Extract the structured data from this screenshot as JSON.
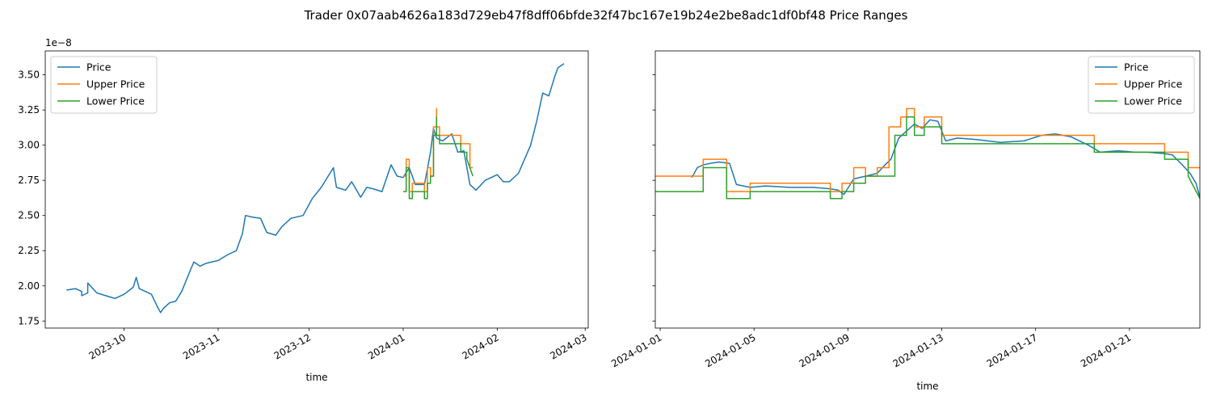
{
  "title": "Trader 0x07aab4626a183d729eb47f8dff06bfde32f47bc167e19b24e2be8adc1df0bf48 Price Ranges",
  "colors": {
    "price": "#1f77b4",
    "upper": "#ff7f0e",
    "lower": "#2ca02c"
  },
  "chart_data": [
    {
      "type": "line",
      "xlabel": "time",
      "y_offset_label": "1e−8",
      "y_unit": "1e-8",
      "xlim": [
        "2023-09-05",
        "2024-03-02"
      ],
      "ylim": [
        1.7,
        3.67
      ],
      "x_ticks": [
        "2023-10-01",
        "2023-11-01",
        "2023-12-01",
        "2024-01-01",
        "2024-02-01",
        "2024-03-01"
      ],
      "x_tick_labels": [
        "2023-10",
        "2023-11",
        "2023-12",
        "2024-01",
        "2024-02",
        "2024-03"
      ],
      "y_ticks": [
        1.75,
        2.0,
        2.25,
        2.5,
        2.75,
        3.0,
        3.25,
        3.5
      ],
      "y_tick_labels": [
        "1.75",
        "2.00",
        "2.25",
        "2.50",
        "2.75",
        "3.00",
        "3.25",
        "3.50"
      ],
      "legend": {
        "position": "top-left",
        "entries": [
          "Price",
          "Upper Price",
          "Lower Price"
        ]
      },
      "series": [
        {
          "name": "Price",
          "color": "#1f77b4",
          "x": [
            "2023-09-12",
            "2023-09-15",
            "2023-09-17",
            "2023-09-17",
            "2023-09-19",
            "2023-09-19",
            "2023-09-22",
            "2023-09-25",
            "2023-09-28",
            "2023-10-01",
            "2023-10-04",
            "2023-10-05",
            "2023-10-06",
            "2023-10-08",
            "2023-10-10",
            "2023-10-12",
            "2023-10-13",
            "2023-10-14",
            "2023-10-16",
            "2023-10-18",
            "2023-10-20",
            "2023-10-23",
            "2023-10-24",
            "2023-10-26",
            "2023-10-28",
            "2023-11-01",
            "2023-11-04",
            "2023-11-07",
            "2023-11-09",
            "2023-11-10",
            "2023-11-12",
            "2023-11-15",
            "2023-11-17",
            "2023-11-20",
            "2023-11-22",
            "2023-11-25",
            "2023-11-29",
            "2023-12-02",
            "2023-12-05",
            "2023-12-09",
            "2023-12-10",
            "2023-12-13",
            "2023-12-15",
            "2023-12-18",
            "2023-12-20",
            "2023-12-22",
            "2023-12-25",
            "2023-12-28",
            "2023-12-30",
            "2024-01-01",
            "2024-01-03",
            "2024-01-05",
            "2024-01-08",
            "2024-01-10",
            "2024-01-11",
            "2024-01-12",
            "2024-01-14",
            "2024-01-17",
            "2024-01-19",
            "2024-01-21",
            "2024-01-23",
            "2024-01-25",
            "2024-01-28",
            "2024-02-01",
            "2024-02-03",
            "2024-02-05",
            "2024-02-08",
            "2024-02-10",
            "2024-02-12",
            "2024-02-14",
            "2024-02-16",
            "2024-02-18",
            "2024-02-20",
            "2024-02-21",
            "2024-02-23"
          ],
          "y": [
            1.97,
            1.98,
            1.96,
            1.93,
            1.95,
            2.02,
            1.95,
            1.93,
            1.91,
            1.94,
            1.99,
            2.06,
            1.98,
            1.96,
            1.94,
            1.85,
            1.81,
            1.84,
            1.88,
            1.89,
            1.96,
            2.12,
            2.17,
            2.14,
            2.16,
            2.18,
            2.22,
            2.25,
            2.37,
            2.5,
            2.49,
            2.48,
            2.38,
            2.36,
            2.42,
            2.48,
            2.5,
            2.62,
            2.7,
            2.84,
            2.7,
            2.68,
            2.74,
            2.63,
            2.7,
            2.69,
            2.67,
            2.86,
            2.78,
            2.77,
            2.84,
            2.72,
            2.72,
            2.95,
            3.12,
            3.05,
            3.03,
            3.08,
            2.95,
            2.96,
            2.72,
            2.68,
            2.75,
            2.79,
            2.74,
            2.74,
            2.8,
            2.9,
            3.0,
            3.17,
            3.37,
            3.35,
            3.49,
            3.55,
            3.58
          ]
        },
        {
          "name": "Upper Price",
          "color": "#ff7f0e",
          "x": [
            "2024-01-01",
            "2024-01-02",
            "2024-01-02",
            "2024-01-03",
            "2024-01-03",
            "2024-01-04",
            "2024-01-04",
            "2024-01-08",
            "2024-01-08",
            "2024-01-09",
            "2024-01-09",
            "2024-01-10",
            "2024-01-10",
            "2024-01-11",
            "2024-01-11",
            "2024-01-12",
            "2024-01-12",
            "2024-01-12",
            "2024-01-12",
            "2024-01-13",
            "2024-01-13",
            "2024-01-20",
            "2024-01-20",
            "2024-01-23",
            "2024-01-23",
            "2024-01-24"
          ],
          "y": [
            2.78,
            2.78,
            2.9,
            2.9,
            2.67,
            2.67,
            2.73,
            2.73,
            2.67,
            2.67,
            2.84,
            2.84,
            2.78,
            2.78,
            3.13,
            3.13,
            3.26,
            3.26,
            3.13,
            3.13,
            3.07,
            3.07,
            3.01,
            3.01,
            2.84,
            2.84
          ]
        },
        {
          "name": "Lower Price",
          "color": "#2ca02c",
          "x": [
            "2024-01-01",
            "2024-01-02",
            "2024-01-02",
            "2024-01-03",
            "2024-01-03",
            "2024-01-04",
            "2024-01-04",
            "2024-01-08",
            "2024-01-08",
            "2024-01-09",
            "2024-01-09",
            "2024-01-10",
            "2024-01-10",
            "2024-01-11",
            "2024-01-11",
            "2024-01-12",
            "2024-01-12",
            "2024-01-12",
            "2024-01-12",
            "2024-01-13",
            "2024-01-13",
            "2024-01-20",
            "2024-01-20",
            "2024-01-22",
            "2024-01-22",
            "2024-01-24"
          ],
          "y": [
            2.67,
            2.67,
            2.84,
            2.84,
            2.62,
            2.62,
            2.67,
            2.67,
            2.62,
            2.62,
            2.73,
            2.73,
            2.78,
            2.78,
            3.07,
            3.07,
            3.2,
            3.2,
            3.07,
            3.07,
            3.01,
            3.01,
            2.95,
            2.95,
            2.9,
            2.78
          ]
        }
      ]
    },
    {
      "type": "line",
      "xlabel": "time",
      "y_unit": "1e-8",
      "xlim": [
        "2023-12-31T19:00",
        "2024-01-24T00:00"
      ],
      "ylim": [
        1.7,
        3.67
      ],
      "x_ticks": [
        "2024-01-01",
        "2024-01-05",
        "2024-01-09",
        "2024-01-13",
        "2024-01-17",
        "2024-01-21"
      ],
      "x_tick_labels": [
        "2024-01-01",
        "2024-01-05",
        "2024-01-09",
        "2024-01-13",
        "2024-01-17",
        "2024-01-21"
      ],
      "y_ticks": [
        1.75,
        2.0,
        2.25,
        2.5,
        2.75,
        3.0,
        3.25,
        3.5
      ],
      "legend": {
        "position": "top-right",
        "entries": [
          "Price",
          "Upper Price",
          "Lower Price"
        ]
      },
      "series": [
        {
          "name": "Price",
          "color": "#1f77b4",
          "x": [
            "2024-01-02T08:00",
            "2024-01-02T10:00",
            "2024-01-02T14:00",
            "2024-01-02T20:00",
            "2024-01-03T03:00",
            "2024-01-03T12:00",
            "2024-01-03T23:00",
            "2024-01-04T06:00",
            "2024-01-04T20:00",
            "2024-01-05T12:00",
            "2024-01-06T12:00",
            "2024-01-07T12:00",
            "2024-01-08T06:00",
            "2024-01-08T14:00",
            "2024-01-08T20:00",
            "2024-01-09T06:00",
            "2024-01-09T18:00",
            "2024-01-10T06:00",
            "2024-01-10T14:00",
            "2024-01-10T20:00",
            "2024-01-11T04:00",
            "2024-01-11T12:00",
            "2024-01-11T20:00",
            "2024-01-12T04:00",
            "2024-01-12T12:00",
            "2024-01-12T20:00",
            "2024-01-13T04:00",
            "2024-01-13T16:00",
            "2024-01-14T12:00",
            "2024-01-15T12:00",
            "2024-01-16T12:00",
            "2024-01-17T06:00",
            "2024-01-17T20:00",
            "2024-01-18T12:00",
            "2024-01-19T06:00",
            "2024-01-19T18:00",
            "2024-01-20T12:00",
            "2024-01-21T06:00",
            "2024-01-21T18:00",
            "2024-01-22T12:00",
            "2024-01-22T20:00",
            "2024-01-23T06:00",
            "2024-01-23T14:00",
            "2024-01-23T20:00",
            "2024-01-24T00:00"
          ],
          "y": [
            2.77,
            2.79,
            2.84,
            2.86,
            2.87,
            2.88,
            2.87,
            2.72,
            2.7,
            2.71,
            2.7,
            2.7,
            2.69,
            2.68,
            2.65,
            2.76,
            2.78,
            2.8,
            2.86,
            2.9,
            3.05,
            3.1,
            3.15,
            3.12,
            3.18,
            3.17,
            3.03,
            3.05,
            3.04,
            3.02,
            3.03,
            3.07,
            3.08,
            3.06,
            3.0,
            2.95,
            2.96,
            2.95,
            2.95,
            2.94,
            2.93,
            2.86,
            2.8,
            2.73,
            2.63
          ]
        },
        {
          "name": "Upper Price",
          "color": "#ff7f0e",
          "x": [
            "2023-12-31T19:00",
            "2024-01-02T20:00",
            "2024-01-02T20:00",
            "2024-01-03T20:00",
            "2024-01-03T20:00",
            "2024-01-04T20:00",
            "2024-01-04T20:00",
            "2024-01-08T06:00",
            "2024-01-08T06:00",
            "2024-01-08T18:00",
            "2024-01-08T18:00",
            "2024-01-09T06:00",
            "2024-01-09T06:00",
            "2024-01-09T18:00",
            "2024-01-09T18:00",
            "2024-01-10T06:00",
            "2024-01-10T06:00",
            "2024-01-10T18:00",
            "2024-01-10T18:00",
            "2024-01-11T06:00",
            "2024-01-11T06:00",
            "2024-01-11T12:00",
            "2024-01-11T12:00",
            "2024-01-11T20:00",
            "2024-01-11T20:00",
            "2024-01-12T06:00",
            "2024-01-12T06:00",
            "2024-01-12T14:00",
            "2024-01-12T14:00",
            "2024-01-13T00:00",
            "2024-01-13T00:00",
            "2024-01-19T12:00",
            "2024-01-19T12:00",
            "2024-01-22T12:00",
            "2024-01-22T12:00",
            "2024-01-23T12:00",
            "2024-01-23T12:00",
            "2024-01-24T00:00"
          ],
          "y": [
            2.78,
            2.78,
            2.9,
            2.9,
            2.67,
            2.67,
            2.73,
            2.73,
            2.67,
            2.67,
            2.73,
            2.73,
            2.84,
            2.84,
            2.78,
            2.78,
            2.84,
            2.84,
            3.13,
            3.13,
            3.2,
            3.2,
            3.26,
            3.26,
            3.13,
            3.13,
            3.2,
            3.2,
            3.2,
            3.2,
            3.07,
            3.07,
            3.01,
            3.01,
            2.95,
            2.95,
            2.84,
            2.84
          ]
        },
        {
          "name": "Lower Price",
          "color": "#2ca02c",
          "x": [
            "2023-12-31T19:00",
            "2024-01-02T20:00",
            "2024-01-02T20:00",
            "2024-01-03T20:00",
            "2024-01-03T20:00",
            "2024-01-04T20:00",
            "2024-01-04T20:00",
            "2024-01-08T06:00",
            "2024-01-08T06:00",
            "2024-01-08T18:00",
            "2024-01-08T18:00",
            "2024-01-09T06:00",
            "2024-01-09T06:00",
            "2024-01-09T18:00",
            "2024-01-09T18:00",
            "2024-01-11T00:00",
            "2024-01-11T00:00",
            "2024-01-11T12:00",
            "2024-01-11T12:00",
            "2024-01-11T20:00",
            "2024-01-11T20:00",
            "2024-01-12T06:00",
            "2024-01-12T06:00",
            "2024-01-12T14:00",
            "2024-01-12T14:00",
            "2024-01-13T00:00",
            "2024-01-13T00:00",
            "2024-01-19T12:00",
            "2024-01-19T12:00",
            "2024-01-22T12:00",
            "2024-01-22T12:00",
            "2024-01-23T12:00",
            "2024-01-23T12:00",
            "2024-01-24T00:00"
          ],
          "y": [
            2.67,
            2.67,
            2.84,
            2.84,
            2.62,
            2.62,
            2.67,
            2.67,
            2.62,
            2.62,
            2.67,
            2.67,
            2.73,
            2.73,
            2.78,
            2.78,
            3.07,
            3.07,
            3.2,
            3.2,
            3.07,
            3.07,
            3.13,
            3.13,
            3.13,
            3.13,
            3.01,
            3.01,
            2.95,
            2.95,
            2.9,
            2.9,
            2.78,
            2.62
          ]
        }
      ]
    }
  ]
}
